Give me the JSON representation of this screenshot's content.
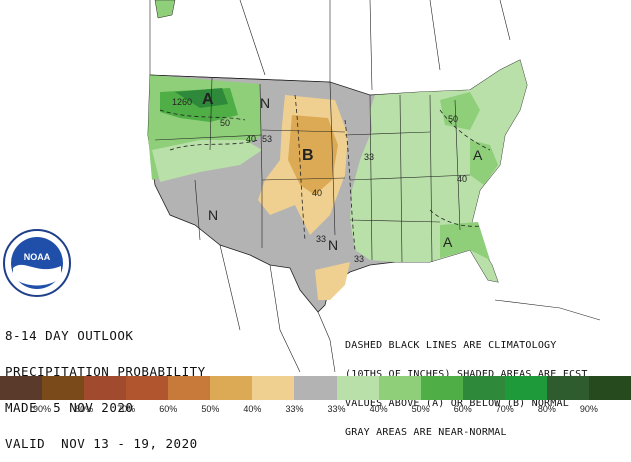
{
  "outlook": {
    "lines": [
      "8-14 DAY OUTLOOK",
      "PRECIPITATION PROBABILITY",
      "MADE  5 NOV 2020",
      "VALID  NOV 13 - 19, 2020"
    ]
  },
  "climatology_note": {
    "lines": [
      "DASHED BLACK LINES ARE CLIMATOLOGY",
      "(10THS OF INCHES) SHADED AREAS ARE FCST",
      "VALUES ABOVE (A) OR BELOW (B) NORMAL",
      "GRAY AREAS ARE NEAR-NORMAL"
    ]
  },
  "map_labels": {
    "above_west": "A",
    "above_east": "A",
    "above_midatlantic": "A",
    "below_plains": "B",
    "normal_north": "N",
    "normal_southwest": "N",
    "normal_texas": "N",
    "clim_1260": "1260",
    "clim_50_nw": "50",
    "clim_40_mt": "40",
    "clim_53": "53",
    "clim_40_plains": "40",
    "clim_33_mid": "33",
    "clim_33_tx": "33",
    "clim_33_gulf": "33",
    "clim_40_se": "40",
    "clim_50_ne": "50"
  },
  "legend": {
    "swatches": [
      {
        "color": "#5a3a2a"
      },
      {
        "color": "#7a4a1a"
      },
      {
        "color": "#a14a2e"
      },
      {
        "color": "#b0552e"
      },
      {
        "color": "#c87a3a"
      },
      {
        "color": "#dcaa55"
      },
      {
        "color": "#f0d090"
      },
      {
        "color": "#b3b3b3"
      },
      {
        "color": "#b8e0a8"
      },
      {
        "color": "#8fcf7a"
      },
      {
        "color": "#4fae45"
      },
      {
        "color": "#2e8a3a"
      },
      {
        "color": "#1f9a3a"
      },
      {
        "color": "#2f5c2f"
      },
      {
        "color": "#264a1e"
      }
    ],
    "labels": [
      "90%",
      "80%",
      "70%",
      "60%",
      "50%",
      "40%",
      "33%",
      "33%",
      "40%",
      "50%",
      "60%",
      "70%",
      "80%",
      "90%"
    ]
  },
  "logo": {
    "text": "NOAA"
  }
}
